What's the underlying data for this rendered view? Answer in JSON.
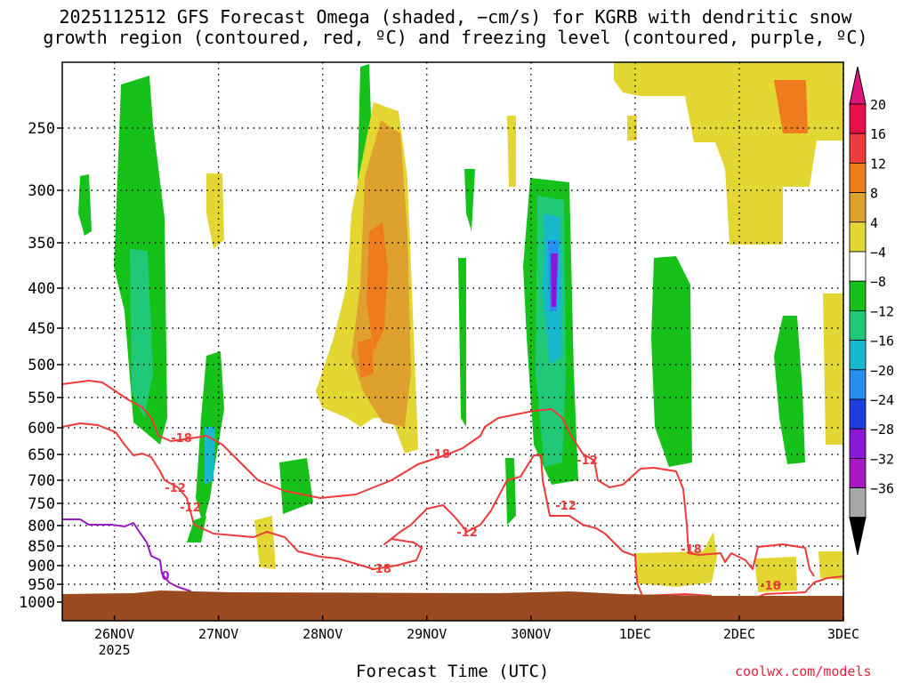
{
  "title_line1": "2025112512 GFS Forecast Omega (shaded, −cm/s) for KGRB with dendritic snow",
  "title_line2": "growth region (contoured, red, ºC) and freezing level (contoured, purple, ºC)",
  "x_axis_title": "Forecast Time (UTC)",
  "credit": "coolwx.com/models",
  "chart_data": {
    "type": "heatmap",
    "xlabel": "Forecast Time (UTC)",
    "ylabel": "Pressure (hPa)",
    "y_ticks": [
      250,
      300,
      350,
      400,
      450,
      500,
      550,
      600,
      650,
      700,
      750,
      800,
      850,
      900,
      950,
      1000
    ],
    "ylim": [
      1000,
      200
    ],
    "x_ticks": [
      {
        "label": "26NOV",
        "sub": "2025",
        "hours": 12
      },
      {
        "label": "27NOV",
        "hours": 36
      },
      {
        "label": "28NOV",
        "hours": 60
      },
      {
        "label": "29NOV",
        "hours": 84
      },
      {
        "label": "30NOV",
        "hours": 108
      },
      {
        "label": "1DEC",
        "hours": 132
      },
      {
        "label": "2DEC",
        "hours": 156
      },
      {
        "label": "3DEC",
        "hours": 180
      }
    ],
    "xlim_hours": [
      0,
      180
    ],
    "colorbar": {
      "levels": [
        "20",
        "16",
        "12",
        "8",
        "4",
        "−4",
        "−8",
        "−12",
        "−16",
        "−20",
        "−24",
        "−28",
        "−32",
        "−36"
      ],
      "colors": [
        "#e8104c",
        "#f03c3c",
        "#ee7c1c",
        "#dfa12e",
        "#e4d632",
        "#ffffff",
        "#16c21a",
        "#20c878",
        "#18b8cc",
        "#2a8ef0",
        "#1c3ee0",
        "#8a18d8",
        "#a818c0",
        "#a8a8a8"
      ],
      "top_triangle": "#e0157a",
      "bottom_triangle": "#000000"
    },
    "contour_labels": [
      {
        "text": "-18",
        "color": "#ee3a3a"
      },
      {
        "text": "-12",
        "color": "#ee3a3a"
      },
      {
        "text": "-18",
        "color": "#ee3a3a"
      },
      {
        "text": "-12",
        "color": "#ee3a3a"
      },
      {
        "text": "-12",
        "color": "#ee3a3a"
      },
      {
        "text": "-12",
        "color": "#ee3a3a"
      },
      {
        "text": "-18",
        "color": "#ee3a3a"
      },
      {
        "text": "-12",
        "color": "#ee3a3a"
      },
      {
        "text": "-18",
        "color": "#ee3a3a"
      },
      {
        "text": "-18",
        "color": "#ee3a3a"
      },
      {
        "text": "0",
        "color": "#9a16c8"
      }
    ],
    "colors": {
      "ground": "#9a4a20",
      "dsg_contour": "#ee3a3a",
      "freezing_contour": "#9a16c8"
    }
  }
}
